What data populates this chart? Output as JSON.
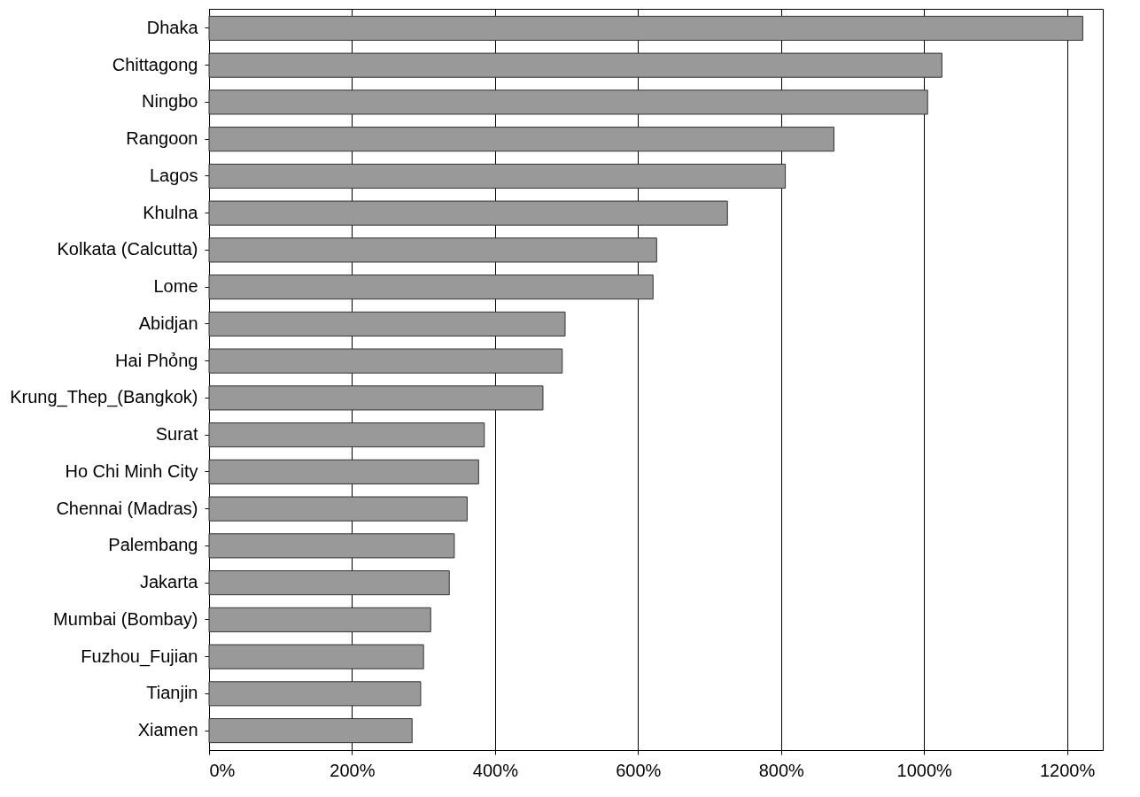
{
  "chart_data": {
    "type": "bar",
    "orientation": "horizontal",
    "categories": [
      "Dhaka",
      "Chittagong",
      "Ningbo",
      "Rangoon",
      "Lagos",
      "Khulna",
      "Kolkata (Calcutta)",
      "Lome",
      "Abidjan",
      "Hai Phỏng",
      "Krung_Thep_(Bangkok)",
      "Surat",
      "Ho Chi Minh City",
      "Chennai (Madras)",
      "Palembang",
      "Jakarta",
      "Mumbai (Bombay)",
      "Fuzhou_Fujian",
      "Tianjin",
      "Xiamen"
    ],
    "values": [
      1222,
      1025,
      1005,
      874,
      806,
      725,
      626,
      621,
      498,
      494,
      467,
      385,
      377,
      361,
      343,
      336,
      310,
      300,
      296,
      284
    ],
    "color": "#999999",
    "xlim": [
      0,
      1250
    ],
    "xticks": [
      {
        "value": 0,
        "label": "0%"
      },
      {
        "value": 200,
        "label": "200%"
      },
      {
        "value": 400,
        "label": "400%"
      },
      {
        "value": 600,
        "label": "600%"
      },
      {
        "value": 800,
        "label": "800%"
      },
      {
        "value": 1000,
        "label": "1000%"
      },
      {
        "value": 1200,
        "label": "1200%"
      }
    ],
    "grid": "x",
    "legend": false
  }
}
